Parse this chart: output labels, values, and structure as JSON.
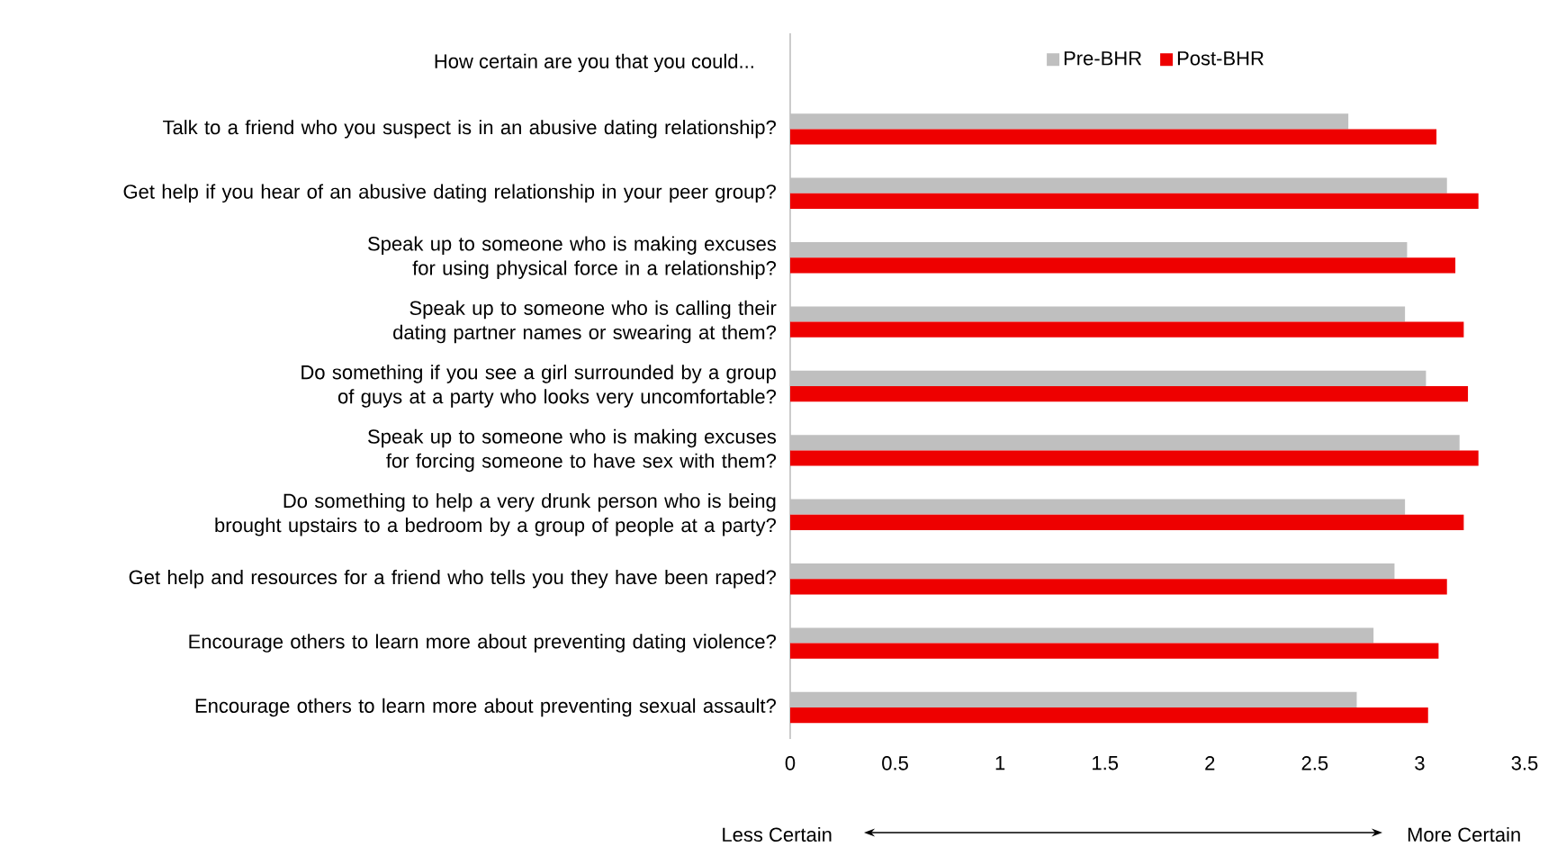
{
  "chart_data": {
    "type": "bar",
    "orientation": "horizontal",
    "title": "How certain are you that you could...",
    "categories": [
      "Talk to a friend who you suspect is in an abusive dating relationship?",
      "Get help if you hear of an abusive dating relationship in your peer group?",
      "Speak up to someone who is making excuses for using physical force in a relationship?",
      "Speak up to someone who is calling their dating partner names or swearing at them?",
      "Do something if you see a girl surrounded by a group of guys at a party who looks very uncomfortable?",
      "Speak up to someone who is making excuses for forcing someone to have sex with them?",
      "Do something to help a very drunk person who is being brought upstairs to a bedroom by a group of people at a party?",
      "Get help and resources for a friend who tells you they have been raped?",
      "Encourage others to learn more about preventing dating violence?",
      "Encourage others to learn more about preventing sexual assault?"
    ],
    "series": [
      {
        "name": "Pre-BHR",
        "color": "#bfbfbf",
        "values": [
          2.66,
          3.13,
          2.94,
          2.93,
          3.03,
          3.19,
          2.93,
          2.88,
          2.78,
          2.7
        ]
      },
      {
        "name": "Post-BHR",
        "color": "#ee0000",
        "values": [
          3.08,
          3.28,
          3.17,
          3.21,
          3.23,
          3.28,
          3.21,
          3.13,
          3.09,
          3.04
        ]
      }
    ],
    "xlim": [
      0,
      3.5
    ],
    "xticks": [
      0,
      0.5,
      1,
      1.5,
      2,
      2.5,
      3,
      3.5
    ],
    "legend": "top",
    "grid": false,
    "annotations": [
      "Less Certain",
      "More Certain"
    ]
  }
}
